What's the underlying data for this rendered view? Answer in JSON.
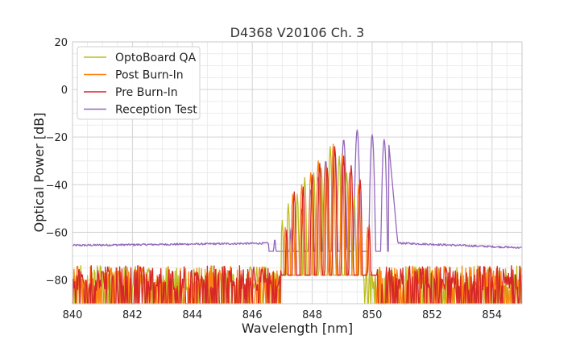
{
  "chart_data": {
    "type": "line",
    "title": "D4368 V20106 Ch. 3",
    "xlabel": "Wavelength [nm]",
    "ylabel": "Optical Power [dB]",
    "xlim": [
      840,
      855
    ],
    "ylim": [
      -90,
      20
    ],
    "xticks": [
      840,
      842,
      844,
      846,
      848,
      850,
      852,
      854
    ],
    "xtick_labels": [
      "840",
      "842",
      "844",
      "846",
      "848",
      "850",
      "852",
      "854"
    ],
    "yticks": [
      -80,
      -60,
      -40,
      -20,
      0,
      20
    ],
    "ytick_labels": [
      "−80",
      "−60",
      "−40",
      "−20",
      "0",
      "20"
    ],
    "grid": true,
    "legend_position": "top-left",
    "series": [
      {
        "name": "OptoBoard QA",
        "color": "#bcbd22",
        "noise_floor": {
          "x_range": [
            840,
            855
          ],
          "gap": [
            846.95,
            849.7
          ],
          "min": -90,
          "max": -74
        },
        "peaks": [
          {
            "x": 846.65,
            "y": -66
          },
          {
            "x": 847.0,
            "y": -55
          },
          {
            "x": 847.2,
            "y": -48
          },
          {
            "x": 847.5,
            "y": -44
          },
          {
            "x": 847.75,
            "y": -37
          },
          {
            "x": 848.05,
            "y": -35
          },
          {
            "x": 848.3,
            "y": -33
          },
          {
            "x": 848.6,
            "y": -24
          },
          {
            "x": 848.9,
            "y": -28
          },
          {
            "x": 849.15,
            "y": -35
          },
          {
            "x": 849.4,
            "y": -45
          },
          {
            "x": 849.6,
            "y": -62
          }
        ]
      },
      {
        "name": "Post Burn-In",
        "color": "#ff7f0e",
        "noise_floor": {
          "x_range": [
            840,
            855
          ],
          "gap": [
            846.9,
            850.1
          ],
          "min": -90,
          "max": -74
        },
        "peaks": [
          {
            "x": 846.8,
            "y": -66
          },
          {
            "x": 847.1,
            "y": -58
          },
          {
            "x": 847.35,
            "y": -44
          },
          {
            "x": 847.65,
            "y": -40
          },
          {
            "x": 847.95,
            "y": -35
          },
          {
            "x": 848.2,
            "y": -30
          },
          {
            "x": 848.45,
            "y": -32
          },
          {
            "x": 848.7,
            "y": -23
          },
          {
            "x": 849.0,
            "y": -27
          },
          {
            "x": 849.25,
            "y": -35
          },
          {
            "x": 849.55,
            "y": -40
          },
          {
            "x": 849.85,
            "y": -58
          }
        ]
      },
      {
        "name": "Pre Burn-In",
        "color": "#d62728",
        "noise_floor": {
          "x_range": [
            840,
            855
          ],
          "gap": [
            846.95,
            850.15
          ],
          "min": -90,
          "max": -74
        },
        "peaks": [
          {
            "x": 846.85,
            "y": -67
          },
          {
            "x": 847.15,
            "y": -59
          },
          {
            "x": 847.4,
            "y": -43
          },
          {
            "x": 847.7,
            "y": -41
          },
          {
            "x": 848.0,
            "y": -36
          },
          {
            "x": 848.25,
            "y": -31
          },
          {
            "x": 848.5,
            "y": -33
          },
          {
            "x": 848.75,
            "y": -24
          },
          {
            "x": 849.05,
            "y": -28
          },
          {
            "x": 849.3,
            "y": -32
          },
          {
            "x": 849.6,
            "y": -38
          },
          {
            "x": 849.9,
            "y": -57
          }
        ]
      },
      {
        "name": "Reception Test",
        "color": "#9467bd",
        "baseline": [
          [
            840,
            -65.5
          ],
          [
            846.0,
            -65
          ],
          [
            846.6,
            -64
          ]
        ],
        "baseline_right": [
          [
            850.9,
            -64
          ],
          [
            851.5,
            -65
          ],
          [
            855,
            -66.5
          ]
        ],
        "peaks": [
          {
            "x": 846.75,
            "y": -63
          },
          {
            "x": 847.3,
            "y": -58
          },
          {
            "x": 847.65,
            "y": -50
          },
          {
            "x": 847.95,
            "y": -42
          },
          {
            "x": 848.2,
            "y": -37
          },
          {
            "x": 848.45,
            "y": -30
          },
          {
            "x": 848.75,
            "y": -25
          },
          {
            "x": 849.05,
            "y": -21
          },
          {
            "x": 849.5,
            "y": -17
          },
          {
            "x": 850.0,
            "y": -19
          },
          {
            "x": 850.4,
            "y": -21
          }
        ]
      }
    ]
  }
}
